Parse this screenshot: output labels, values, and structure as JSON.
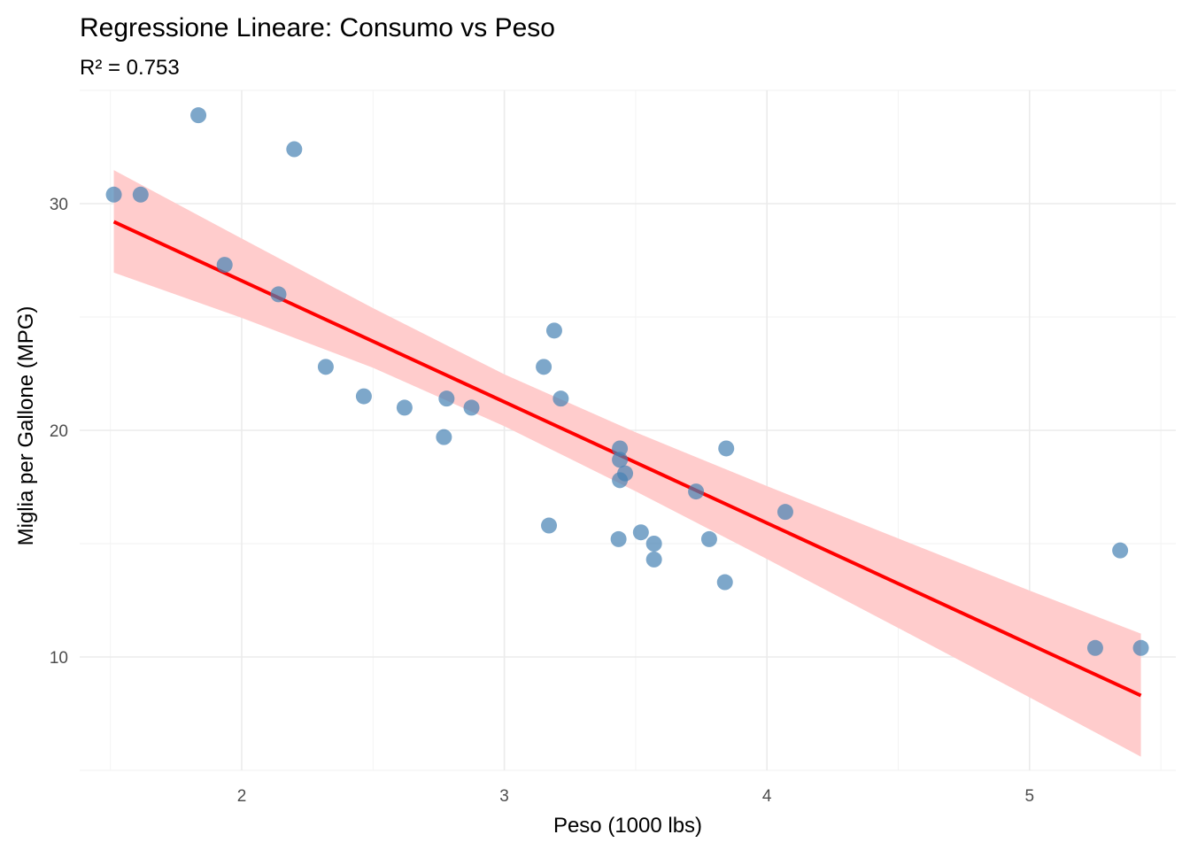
{
  "chart_data": {
    "type": "scatter",
    "title": "Regressione Lineare: Consumo vs Peso",
    "subtitle": "R² = 0.753",
    "xlabel": "Peso (1000 lbs)",
    "ylabel": "Miglia per Gallone (MPG)",
    "xlim": [
      1.383,
      5.557
    ],
    "ylim": [
      5.0,
      35.0
    ],
    "x_ticks": [
      2,
      3,
      4,
      5
    ],
    "x_tick_labels": [
      "2",
      "3",
      "4",
      "5"
    ],
    "y_ticks": [
      10,
      20,
      30
    ],
    "y_tick_labels": [
      "10",
      "20",
      "30"
    ],
    "grid": true,
    "legend": "none",
    "points_color": "#4682b4",
    "points": [
      {
        "x": 2.62,
        "y": 21.0
      },
      {
        "x": 2.875,
        "y": 21.0
      },
      {
        "x": 2.32,
        "y": 22.8
      },
      {
        "x": 3.215,
        "y": 21.4
      },
      {
        "x": 3.44,
        "y": 18.7
      },
      {
        "x": 3.46,
        "y": 18.1
      },
      {
        "x": 3.57,
        "y": 14.3
      },
      {
        "x": 3.19,
        "y": 24.4
      },
      {
        "x": 3.15,
        "y": 22.8
      },
      {
        "x": 3.44,
        "y": 19.2
      },
      {
        "x": 3.44,
        "y": 17.8
      },
      {
        "x": 4.07,
        "y": 16.4
      },
      {
        "x": 3.73,
        "y": 17.3
      },
      {
        "x": 3.78,
        "y": 15.2
      },
      {
        "x": 5.25,
        "y": 10.4
      },
      {
        "x": 5.424,
        "y": 10.4
      },
      {
        "x": 5.345,
        "y": 14.7
      },
      {
        "x": 2.2,
        "y": 32.4
      },
      {
        "x": 1.615,
        "y": 30.4
      },
      {
        "x": 1.835,
        "y": 33.9
      },
      {
        "x": 2.465,
        "y": 21.5
      },
      {
        "x": 3.52,
        "y": 15.5
      },
      {
        "x": 3.435,
        "y": 15.2
      },
      {
        "x": 3.84,
        "y": 13.3
      },
      {
        "x": 3.845,
        "y": 19.2
      },
      {
        "x": 1.935,
        "y": 27.3
      },
      {
        "x": 2.14,
        "y": 26.0
      },
      {
        "x": 1.513,
        "y": 30.4
      },
      {
        "x": 3.17,
        "y": 15.8
      },
      {
        "x": 2.77,
        "y": 19.7
      },
      {
        "x": 3.57,
        "y": 15.0
      },
      {
        "x": 2.78,
        "y": 21.4
      }
    ],
    "regression": {
      "intercept": 37.285,
      "slope": -5.344,
      "color": "#ff0000",
      "band_color": "#ffcccc",
      "band": [
        {
          "x": 1.513,
          "lo": 26.96,
          "hi": 31.48
        },
        {
          "x": 2.0,
          "lo": 24.96,
          "hi": 28.46
        },
        {
          "x": 2.5,
          "lo": 22.76,
          "hi": 25.39
        },
        {
          "x": 3.0,
          "lo": 20.18,
          "hi": 22.47
        },
        {
          "x": 3.5,
          "lo": 17.31,
          "hi": 19.91
        },
        {
          "x": 4.0,
          "lo": 14.32,
          "hi": 17.54
        },
        {
          "x": 4.5,
          "lo": 11.28,
          "hi": 15.23
        },
        {
          "x": 5.0,
          "lo": 8.22,
          "hi": 12.93
        },
        {
          "x": 5.424,
          "lo": 5.6,
          "hi": 11.03
        }
      ]
    }
  }
}
